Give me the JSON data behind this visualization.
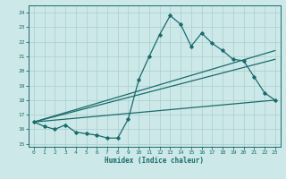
{
  "xlabel": "Humidex (Indice chaleur)",
  "xlim": [
    -0.5,
    23.5
  ],
  "ylim": [
    14.8,
    24.5
  ],
  "yticks": [
    15,
    16,
    17,
    18,
    19,
    20,
    21,
    22,
    23,
    24
  ],
  "xticks": [
    0,
    1,
    2,
    3,
    4,
    5,
    6,
    7,
    8,
    9,
    10,
    11,
    12,
    13,
    14,
    15,
    16,
    17,
    18,
    19,
    20,
    21,
    22,
    23
  ],
  "background_color": "#cde8e8",
  "grid_color": "#aacece",
  "line_color": "#1a6b6b",
  "line1_x": [
    0,
    1,
    2,
    3,
    4,
    5,
    6,
    7,
    8,
    9,
    10,
    11,
    12,
    13,
    14,
    15,
    16,
    17,
    18,
    19,
    20,
    21,
    22,
    23
  ],
  "line1_y": [
    16.5,
    16.2,
    16.0,
    16.3,
    15.8,
    15.7,
    15.6,
    15.4,
    15.4,
    16.7,
    19.4,
    21.0,
    22.5,
    23.8,
    23.2,
    21.7,
    22.6,
    21.9,
    21.4,
    20.8,
    20.7,
    19.6,
    18.5,
    18.0
  ],
  "line2_x": [
    0,
    23
  ],
  "line2_y": [
    16.5,
    18.0
  ],
  "line3_x": [
    0,
    23
  ],
  "line3_y": [
    16.5,
    20.8
  ],
  "line4_x": [
    0,
    23
  ],
  "line4_y": [
    16.5,
    21.4
  ]
}
